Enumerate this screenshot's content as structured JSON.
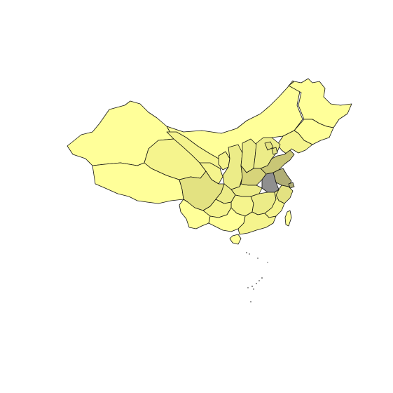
{
  "map": {
    "colors": {
      "background": "#ffffff",
      "border": "#111111",
      "level_1": "#ffff99",
      "level_2": "#f5f48d",
      "level_3": "#ecec88",
      "level_4": "#e3e281",
      "level_5": "#d7d47a",
      "level_6": "#c9c676",
      "level_7": "#b0ae75",
      "level_8": "#8f8f8f"
    },
    "regions": [
      {
        "name": "xinjiang",
        "level": 1
      },
      {
        "name": "tibet",
        "level": 1
      },
      {
        "name": "qinghai",
        "level": 2
      },
      {
        "name": "gansu",
        "level": 2
      },
      {
        "name": "inner-mongolia",
        "level": 1
      },
      {
        "name": "heilongjiang",
        "level": 1
      },
      {
        "name": "jilin",
        "level": 1
      },
      {
        "name": "liaoning",
        "level": 2
      },
      {
        "name": "ningxia",
        "level": 2
      },
      {
        "name": "shaanxi",
        "level": 3
      },
      {
        "name": "shanxi",
        "level": 3
      },
      {
        "name": "hebei",
        "level": 3
      },
      {
        "name": "beijing",
        "level": 4
      },
      {
        "name": "tianjin",
        "level": 4
      },
      {
        "name": "shandong",
        "level": 6
      },
      {
        "name": "henan",
        "level": 5
      },
      {
        "name": "jiangsu",
        "level": 7
      },
      {
        "name": "anhui",
        "level": 8
      },
      {
        "name": "shanghai",
        "level": 7
      },
      {
        "name": "zhejiang",
        "level": 4
      },
      {
        "name": "hubei",
        "level": 3
      },
      {
        "name": "sichuan",
        "level": 4
      },
      {
        "name": "chongqing",
        "level": 3
      },
      {
        "name": "hunan",
        "level": 2
      },
      {
        "name": "jiangxi",
        "level": 3
      },
      {
        "name": "fujian",
        "level": 2
      },
      {
        "name": "guizhou",
        "level": 2
      },
      {
        "name": "yunnan",
        "level": 1
      },
      {
        "name": "guangxi",
        "level": 1
      },
      {
        "name": "guangdong",
        "level": 2
      },
      {
        "name": "hainan",
        "level": 1
      },
      {
        "name": "taiwan",
        "level": 1
      }
    ]
  }
}
